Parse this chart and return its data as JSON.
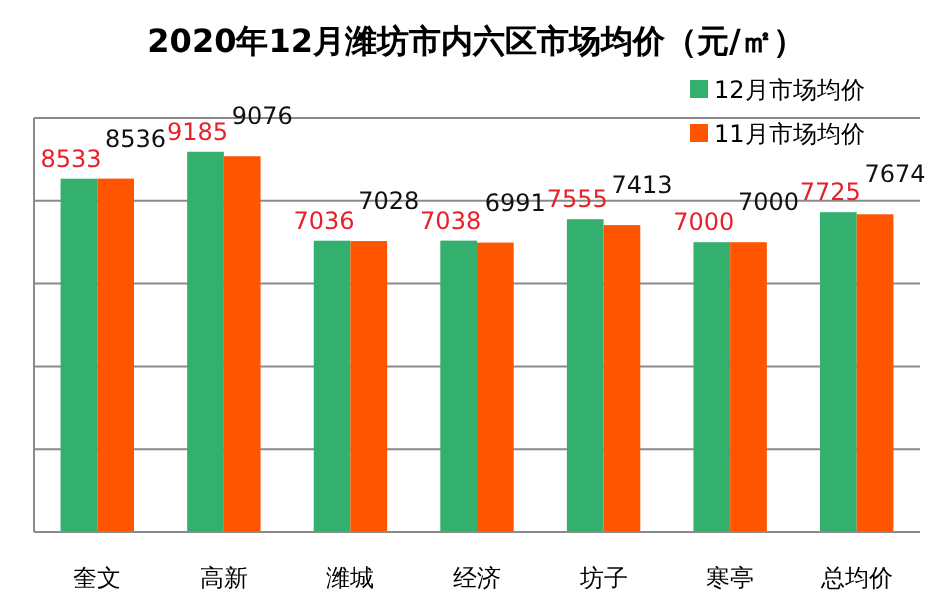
{
  "chart_data": {
    "type": "bar",
    "title": "2020年12月潍坊市内六区市场均价（元/㎡）",
    "categories": [
      "奎文",
      "高新",
      "潍城",
      "经济",
      "坊子",
      "寒亭",
      "总均价"
    ],
    "series": [
      {
        "name": "12月市场均价",
        "color": "#33b06e",
        "values": [
          8533,
          9185,
          7036,
          7038,
          7555,
          7000,
          7725
        ]
      },
      {
        "name": "11月市场均价",
        "color": "#ff5500",
        "values": [
          8536,
          9076,
          7028,
          6991,
          7413,
          7000,
          7674
        ]
      }
    ],
    "ylim": [
      0,
      10000
    ],
    "yticks": [
      {
        "value": 0,
        "label": null
      },
      {
        "value": 2000,
        "label": null
      },
      {
        "value": 4000,
        "label": null
      },
      {
        "value": 6000,
        "label": null
      },
      {
        "value": 8000,
        "label": null
      },
      {
        "value": 10000,
        "label": null
      }
    ],
    "tick_labels": "x",
    "grid": "y",
    "legend": "top right",
    "data_labels": true
  }
}
